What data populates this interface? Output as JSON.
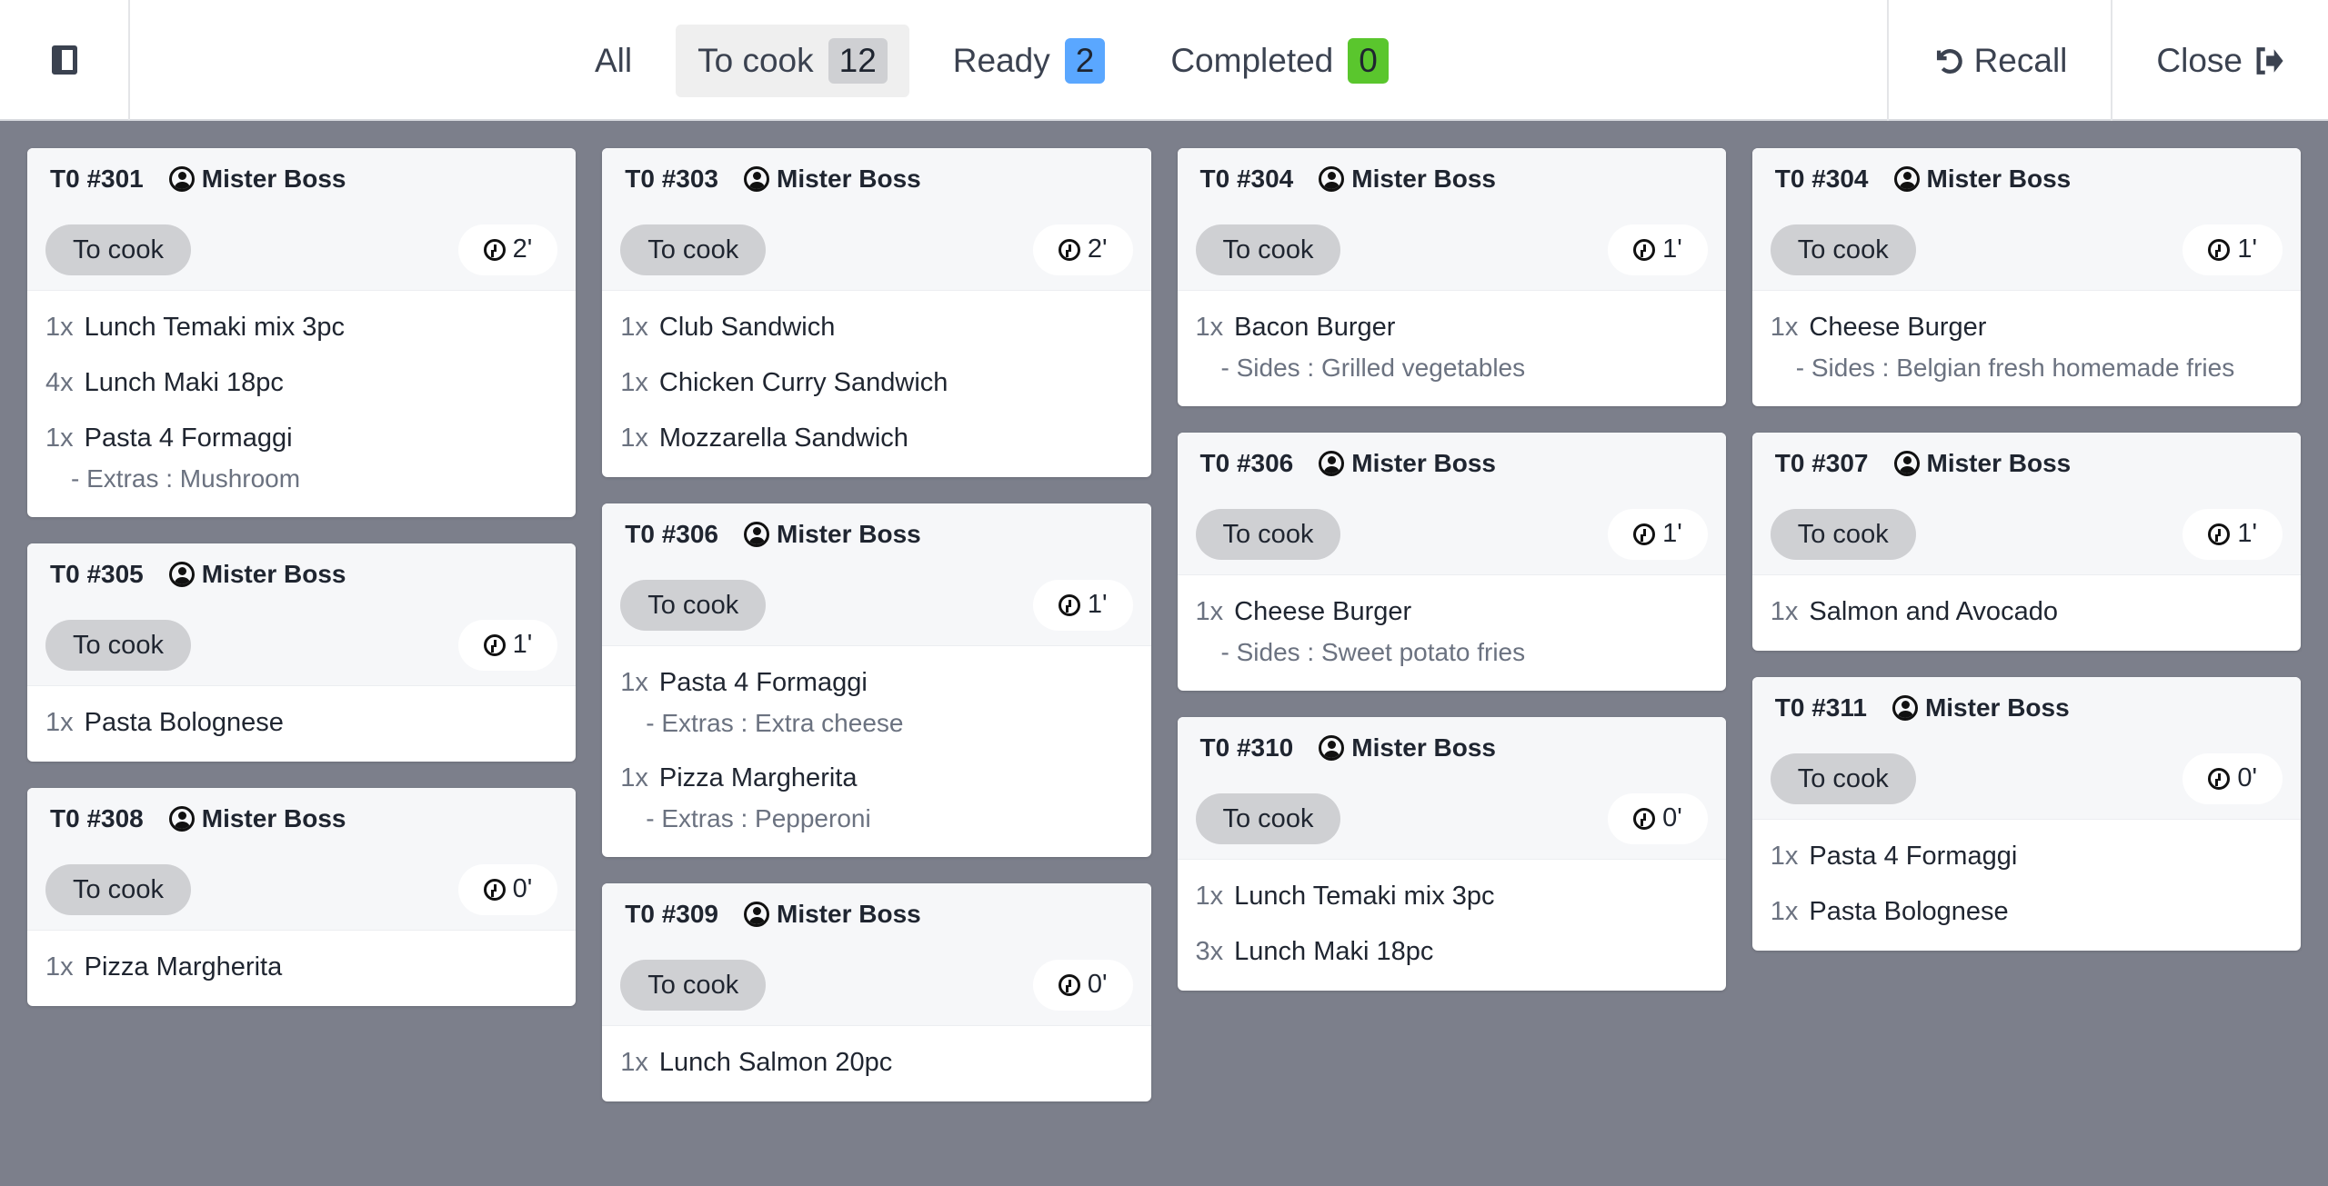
{
  "header": {
    "tabs": [
      {
        "label": "All"
      },
      {
        "label": "To cook",
        "count": "12",
        "color": "#cfd0d3"
      },
      {
        "label": "Ready",
        "count": "2",
        "color": "#5aa7ff"
      },
      {
        "label": "Completed",
        "count": "0",
        "color": "#5ac62d"
      }
    ],
    "recall": "Recall",
    "close": "Close"
  },
  "columns": [
    [
      {
        "title": "T0 #301",
        "user": "Mister Boss",
        "status": "To cook",
        "time": "2'",
        "items": [
          {
            "qty": "1x",
            "name": "Lunch Temaki mix 3pc"
          },
          {
            "qty": "4x",
            "name": "Lunch Maki 18pc"
          },
          {
            "qty": "1x",
            "name": "Pasta 4 Formaggi",
            "mod": "- Extras : Mushroom"
          }
        ]
      },
      {
        "title": "T0 #305",
        "user": "Mister Boss",
        "status": "To cook",
        "time": "1'",
        "items": [
          {
            "qty": "1x",
            "name": "Pasta Bolognese"
          }
        ]
      },
      {
        "title": "T0 #308",
        "user": "Mister Boss",
        "status": "To cook",
        "time": "0'",
        "items": [
          {
            "qty": "1x",
            "name": "Pizza Margherita"
          }
        ]
      }
    ],
    [
      {
        "title": "T0 #303",
        "user": "Mister Boss",
        "status": "To cook",
        "time": "2'",
        "items": [
          {
            "qty": "1x",
            "name": "Club Sandwich"
          },
          {
            "qty": "1x",
            "name": "Chicken Curry Sandwich"
          },
          {
            "qty": "1x",
            "name": "Mozzarella Sandwich"
          }
        ]
      },
      {
        "title": "T0 #306",
        "user": "Mister Boss",
        "status": "To cook",
        "time": "1'",
        "items": [
          {
            "qty": "1x",
            "name": "Pasta 4 Formaggi",
            "mod": "- Extras : Extra cheese"
          },
          {
            "qty": "1x",
            "name": "Pizza Margherita",
            "mod": "- Extras : Pepperoni"
          }
        ]
      },
      {
        "title": "T0 #309",
        "user": "Mister Boss",
        "status": "To cook",
        "time": "0'",
        "items": [
          {
            "qty": "1x",
            "name": "Lunch Salmon 20pc"
          }
        ]
      }
    ],
    [
      {
        "title": "T0 #304",
        "user": "Mister Boss",
        "status": "To cook",
        "time": "1'",
        "items": [
          {
            "qty": "1x",
            "name": "Bacon Burger",
            "mod": "- Sides : Grilled vegetables"
          }
        ]
      },
      {
        "title": "T0 #306",
        "user": "Mister Boss",
        "status": "To cook",
        "time": "1'",
        "items": [
          {
            "qty": "1x",
            "name": "Cheese Burger",
            "mod": "- Sides : Sweet potato fries"
          }
        ]
      },
      {
        "title": "T0 #310",
        "user": "Mister Boss",
        "status": "To cook",
        "time": "0'",
        "items": [
          {
            "qty": "1x",
            "name": "Lunch Temaki mix 3pc"
          },
          {
            "qty": "3x",
            "name": "Lunch Maki 18pc"
          }
        ]
      }
    ],
    [
      {
        "title": "T0 #304",
        "user": "Mister Boss",
        "status": "To cook",
        "time": "1'",
        "items": [
          {
            "qty": "1x",
            "name": "Cheese Burger",
            "mod": "- Sides : Belgian fresh homemade fries"
          }
        ]
      },
      {
        "title": "T0 #307",
        "user": "Mister Boss",
        "status": "To cook",
        "time": "1'",
        "items": [
          {
            "qty": "1x",
            "name": "Salmon and Avocado"
          }
        ]
      },
      {
        "title": "T0 #311",
        "user": "Mister Boss",
        "status": "To cook",
        "time": "0'",
        "items": [
          {
            "qty": "1x",
            "name": "Pasta 4 Formaggi"
          },
          {
            "qty": "1x",
            "name": "Pasta Bolognese"
          }
        ]
      }
    ]
  ]
}
